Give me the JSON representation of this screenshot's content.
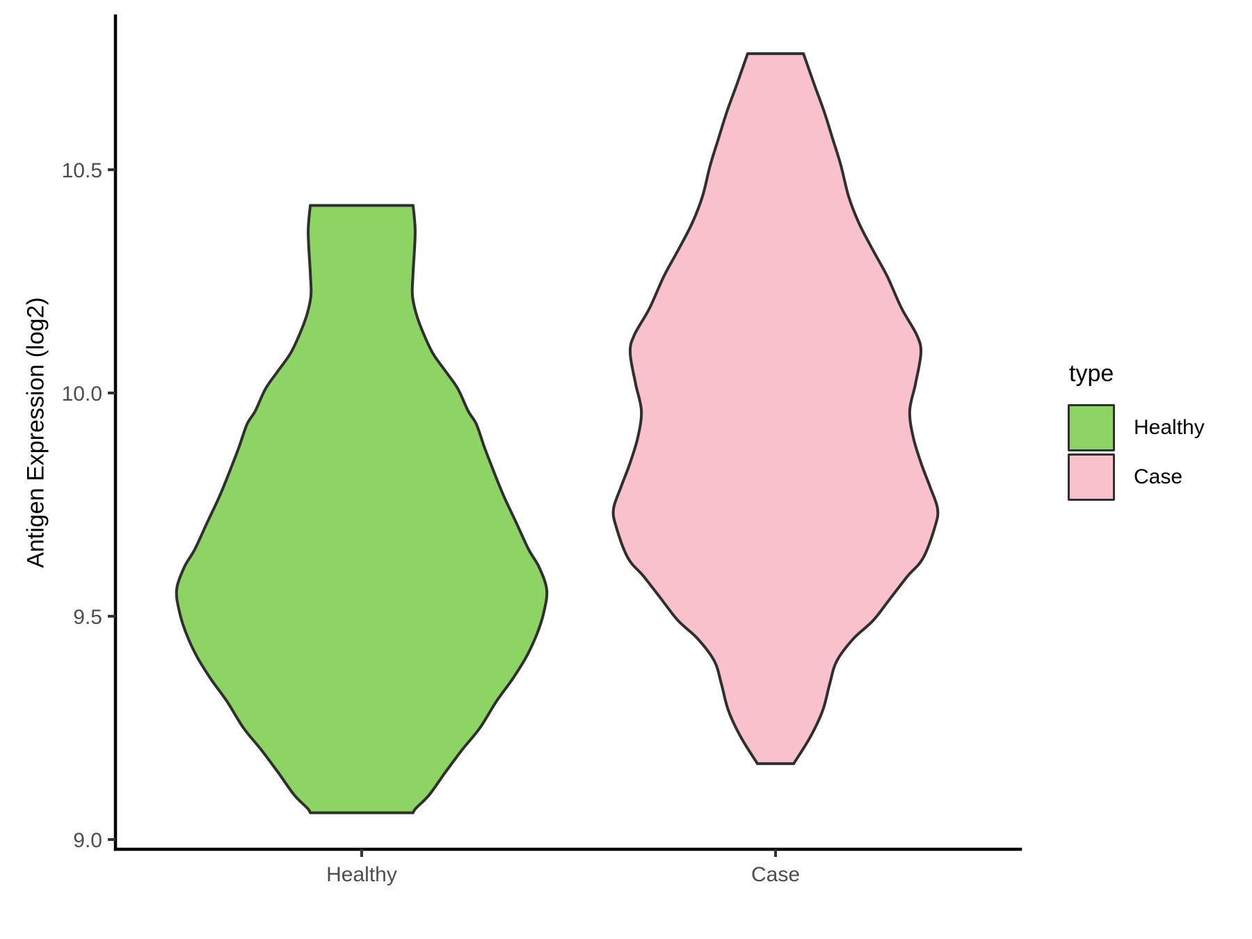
{
  "figure": {
    "background": "#FFFFFF",
    "axis_line_color": "#000000",
    "tick_color": "#333333",
    "tick_label_color": "#4D4D4D",
    "axis_title_color": "#000000",
    "violin_outline_color": "#2F2F2F"
  },
  "ylabel": "Antigen Expression (log2)",
  "legend": {
    "title": "type",
    "entries": [
      {
        "label": "Healthy",
        "color": "#8DD465"
      },
      {
        "label": "Case",
        "color": "#F8C1CC"
      }
    ]
  },
  "chart_data": {
    "type": "violin",
    "title": "",
    "xlabel": "",
    "ylabel": "Antigen Expression (log2)",
    "categories": [
      "Healthy",
      "Case"
    ],
    "y_ticks": [
      9.0,
      9.5,
      10.0,
      10.5
    ],
    "y_axis_range": [
      8.98,
      10.84
    ],
    "grid": false,
    "legend_position": "right",
    "series": [
      {
        "name": "Healthy",
        "fill": "#8DD465",
        "outline": "#2F2F2F",
        "data_range": [
          9.06,
          10.42
        ],
        "peak_value": 9.56,
        "max_width_rel": 1.0,
        "profile": [
          [
            10.42,
            0.278
          ],
          [
            10.36,
            0.289
          ],
          [
            10.27,
            0.278
          ],
          [
            10.22,
            0.274
          ],
          [
            10.18,
            0.293
          ],
          [
            10.14,
            0.327
          ],
          [
            10.09,
            0.383
          ],
          [
            10.05,
            0.451
          ],
          [
            10.01,
            0.519
          ],
          [
            9.96,
            0.575
          ],
          [
            9.93,
            0.62
          ],
          [
            9.88,
            0.662
          ],
          [
            9.84,
            0.699
          ],
          [
            9.8,
            0.737
          ],
          [
            9.76,
            0.778
          ],
          [
            9.71,
            0.835
          ],
          [
            9.65,
            0.902
          ],
          [
            9.61,
            0.959
          ],
          [
            9.56,
            1.0
          ],
          [
            9.51,
            0.985
          ],
          [
            9.46,
            0.947
          ],
          [
            9.41,
            0.891
          ],
          [
            9.36,
            0.816
          ],
          [
            9.31,
            0.729
          ],
          [
            9.25,
            0.639
          ],
          [
            9.2,
            0.541
          ],
          [
            9.15,
            0.451
          ],
          [
            9.1,
            0.365
          ],
          [
            9.07,
            0.293
          ],
          [
            9.06,
            0.278
          ]
        ]
      },
      {
        "name": "Case",
        "fill": "#F8C1CC",
        "outline": "#2F2F2F",
        "data_range": [
          9.17,
          10.76
        ],
        "peak_value": 9.74,
        "max_width_rel": 0.876,
        "profile": [
          [
            10.76,
            0.172
          ],
          [
            10.69,
            0.24
          ],
          [
            10.63,
            0.3
          ],
          [
            10.57,
            0.352
          ],
          [
            10.51,
            0.403
          ],
          [
            10.44,
            0.451
          ],
          [
            10.38,
            0.515
          ],
          [
            10.32,
            0.601
          ],
          [
            10.26,
            0.691
          ],
          [
            10.19,
            0.777
          ],
          [
            10.13,
            0.871
          ],
          [
            10.09,
            0.897
          ],
          [
            10.02,
            0.863
          ],
          [
            9.96,
            0.828
          ],
          [
            9.9,
            0.85
          ],
          [
            9.84,
            0.901
          ],
          [
            9.79,
            0.953
          ],
          [
            9.74,
            1.0
          ],
          [
            9.7,
            0.983
          ],
          [
            9.63,
            0.91
          ],
          [
            9.59,
            0.815
          ],
          [
            9.54,
            0.708
          ],
          [
            9.49,
            0.601
          ],
          [
            9.45,
            0.481
          ],
          [
            9.4,
            0.378
          ],
          [
            9.35,
            0.335
          ],
          [
            9.29,
            0.292
          ],
          [
            9.23,
            0.215
          ],
          [
            9.17,
            0.112
          ]
        ]
      }
    ]
  }
}
